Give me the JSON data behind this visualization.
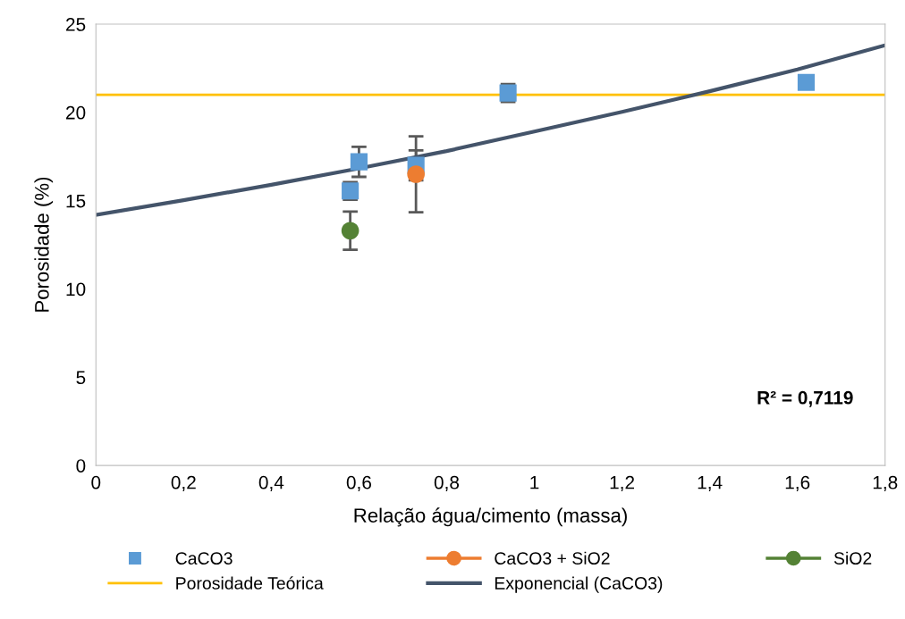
{
  "chart_data": {
    "type": "scatter",
    "xlabel": "Relação água/cimento (massa)",
    "ylabel": "Porosidade (%)",
    "xlim": [
      0,
      1.8
    ],
    "ylim": [
      0,
      25
    ],
    "xticks": [
      {
        "value": 0,
        "label": "0"
      },
      {
        "value": 0.2,
        "label": "0,2"
      },
      {
        "value": 0.4,
        "label": "0,4"
      },
      {
        "value": 0.6,
        "label": "0,6"
      },
      {
        "value": 0.8,
        "label": "0,8"
      },
      {
        "value": 1,
        "label": "1"
      },
      {
        "value": 1.2,
        "label": "1,2"
      },
      {
        "value": 1.4,
        "label": "1,4"
      },
      {
        "value": 1.6,
        "label": "1,6"
      },
      {
        "value": 1.8,
        "label": "1,8"
      }
    ],
    "yticks": [
      0,
      5,
      10,
      15,
      20,
      25
    ],
    "grid": false,
    "legend": "bottom",
    "series": [
      {
        "name": "CaCO3",
        "marker": "square",
        "color": "#5b9bd5",
        "x": [
          0.58,
          0.6,
          0.73,
          0.94,
          1.62
        ],
        "values": [
          15.55,
          17.2,
          17.0,
          21.1,
          21.7
        ],
        "errors": [
          0.5,
          0.85,
          0.85,
          0.5,
          null
        ]
      },
      {
        "name": "CaCO3 + SiO2",
        "marker": "circle",
        "color": "#ed7d31",
        "x": [
          0.73
        ],
        "values": [
          16.5
        ],
        "errors": [
          2.15
        ]
      },
      {
        "name": "SiO2",
        "marker": "circle",
        "color": "#548235",
        "x": [
          0.58
        ],
        "values": [
          13.3
        ],
        "errors": [
          1.08
        ]
      },
      {
        "name": "Exponencial (CaCO3)",
        "type": "line",
        "marker": "none",
        "color": "#44546a",
        "x": [
          0,
          0.2,
          0.4,
          0.6,
          0.8,
          1.0,
          1.2,
          1.4,
          1.6,
          1.8
        ],
        "values": [
          14.2,
          15.03,
          15.9,
          16.83,
          17.81,
          18.92,
          20.03,
          21.2,
          22.43,
          23.8
        ]
      }
    ],
    "ref_lines": [
      {
        "axis": "y",
        "value": 21,
        "label": "Porosidade Teórica",
        "color": "#ffc000",
        "line_style": "solid"
      }
    ],
    "annotations": [
      "R² = 0,7119"
    ]
  }
}
